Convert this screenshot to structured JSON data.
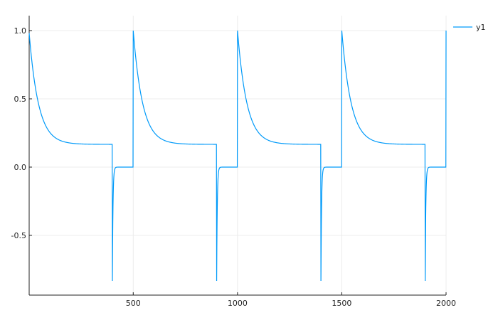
{
  "chart_data": {
    "type": "line",
    "title": "",
    "xlabel": "",
    "ylabel": "",
    "xlim": [
      1,
      2000
    ],
    "ylim": [
      -0.92,
      1.1
    ],
    "grid": true,
    "legend_position": "top-right",
    "x_ticks": [
      {
        "value": 500,
        "label": "500"
      },
      {
        "value": 1000,
        "label": "1000"
      },
      {
        "value": 1500,
        "label": "1500"
      },
      {
        "value": 2000,
        "label": "2000"
      }
    ],
    "y_ticks": [
      {
        "value": 1.0,
        "label": "1.0"
      },
      {
        "value": 0.5,
        "label": "0.5"
      },
      {
        "value": 0.0,
        "label": "0.0"
      },
      {
        "value": -0.5,
        "label": "-0.5"
      }
    ],
    "series": [
      {
        "name": "y1",
        "color": "#009AF9",
        "period": 500,
        "segments": [
          {
            "x_start": 0,
            "x_end": 400,
            "y_start": 1.0,
            "y_end": 0.1667,
            "decay": 9
          },
          {
            "x_start": 400,
            "x_end": 500,
            "y_start": -0.8333,
            "y_end": 0.0,
            "decay": 35
          }
        ]
      }
    ]
  }
}
